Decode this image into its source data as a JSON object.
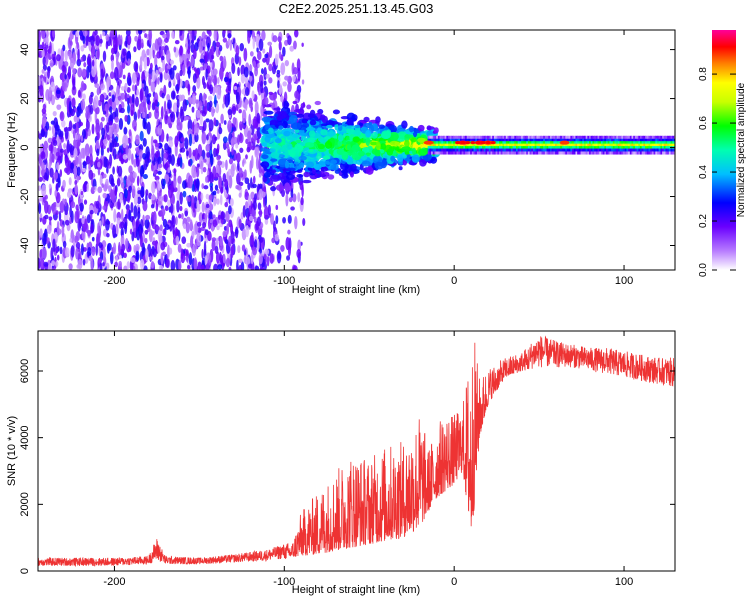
{
  "title": "C2E2.2025.251.13.45.G03",
  "chart_data": [
    {
      "type": "heatmap",
      "xlabel": "Height of straight line (km)",
      "ylabel": "Frequency (Hz)",
      "xlim": [
        -245,
        130
      ],
      "ylim": [
        -50,
        48
      ],
      "xticks": [
        -200,
        -100,
        0,
        100
      ],
      "xtick_labels": [
        "-200",
        "-100",
        "0",
        "100"
      ],
      "yticks": [
        40,
        20,
        0,
        -20,
        -40
      ],
      "ytick_labels": [
        "40",
        "20",
        "0",
        "-20",
        "-40"
      ],
      "colorbar": {
        "label": "Normalized spectral amplitude",
        "range": [
          0,
          0.98
        ],
        "ticks": [
          0.0,
          0.2,
          0.4,
          0.6,
          0.8
        ],
        "tick_labels": [
          "0.0",
          "0.2",
          "0.4",
          "0.6",
          "0.8"
        ],
        "stops": [
          "#ffffff",
          "#7700ff",
          "#0000ff",
          "#00ffff",
          "#00ff00",
          "#ffff00",
          "#ff0000",
          "#ff00aa"
        ]
      },
      "description_regions": [
        {
          "x": [
            -245,
            -90
          ],
          "freq_spread": 48,
          "amplitude": 0.15
        },
        {
          "x": [
            -110,
            -10
          ],
          "freq_spread": 12,
          "amplitude": 0.45
        },
        {
          "x": [
            -10,
            130
          ],
          "freq_spread": 3,
          "amplitude": 0.75
        }
      ],
      "peaks": [
        {
          "x": -15,
          "y": 2,
          "value": 0.9
        },
        {
          "x": 5,
          "y": 2,
          "value": 0.95
        },
        {
          "x": 15,
          "y": 2,
          "value": 0.95
        },
        {
          "x": 20,
          "y": 2,
          "value": 0.9
        },
        {
          "x": 65,
          "y": 2,
          "value": 0.9
        }
      ]
    },
    {
      "type": "line",
      "xlabel": "Height of straight line (km)",
      "ylabel": "SNR (10 * v/v)",
      "xlim": [
        -245,
        130
      ],
      "ylim": [
        0,
        7200
      ],
      "xticks": [
        -200,
        -100,
        0,
        100
      ],
      "xtick_labels": [
        "-200",
        "-100",
        "0",
        "100"
      ],
      "yticks": [
        0,
        2000,
        4000,
        6000
      ],
      "ytick_labels": [
        "0",
        "2000",
        "4000",
        "6000"
      ],
      "color": "#ee3333",
      "envelope": {
        "x": [
          -245,
          -200,
          -180,
          -175,
          -170,
          -150,
          -130,
          -110,
          -95,
          -90,
          -80,
          -70,
          -60,
          -50,
          -40,
          -30,
          -20,
          -15,
          -10,
          -5,
          0,
          5,
          10,
          12,
          15,
          20,
          30,
          40,
          50,
          60,
          70,
          80,
          90,
          100,
          110,
          120,
          130
        ],
        "lo": [
          150,
          150,
          200,
          300,
          200,
          200,
          250,
          300,
          400,
          450,
          500,
          600,
          700,
          800,
          900,
          1000,
          1300,
          1800,
          2200,
          2400,
          2600,
          3000,
          1000,
          2000,
          4000,
          5000,
          5800,
          6000,
          6100,
          6100,
          6100,
          6000,
          5900,
          5800,
          5700,
          5600,
          5500
        ],
        "hi": [
          400,
          400,
          450,
          1000,
          450,
          400,
          500,
          650,
          900,
          1800,
          2400,
          3000,
          3600,
          3400,
          3800,
          3900,
          4800,
          3700,
          4400,
          4800,
          4700,
          5000,
          6800,
          7000,
          5800,
          6100,
          6400,
          6600,
          7100,
          6900,
          6800,
          6700,
          6700,
          6600,
          6500,
          6400,
          6400
        ]
      }
    }
  ]
}
